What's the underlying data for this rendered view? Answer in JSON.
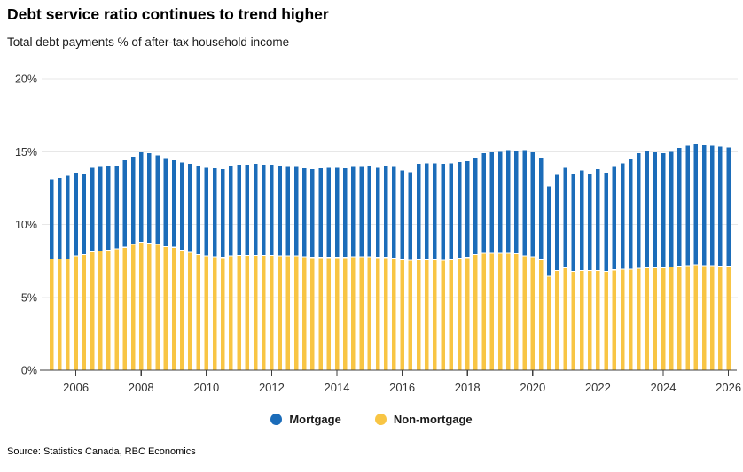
{
  "header": {
    "title": "Debt service ratio continues to trend higher",
    "subtitle": "Total debt payments % of after-tax household income"
  },
  "source": "Source: Statistics Canada, RBC Economics",
  "legend": [
    {
      "label": "Mortgage",
      "color": "#1b6cb9"
    },
    {
      "label": "Non-mortgage",
      "color": "#f8c544"
    }
  ],
  "colors": {
    "mortgage_blue": "#1b6cb9",
    "non_mortgage_yellow": "#f8c544",
    "gridline": "#e7e7e7",
    "axis_line": "#3f3f3f",
    "axis_text": "#333333"
  },
  "chart_data": {
    "type": "bar",
    "stacked": true,
    "title": "Debt service ratio continues to trend higher",
    "subtitle": "Total debt payments % of after-tax household income",
    "xlabel": "",
    "ylabel": "Total debt payments % of after-tax household income",
    "ylim": [
      0,
      20
    ],
    "grid": true,
    "legend_position": "bottom",
    "y_ticks": [
      {
        "label": "0%",
        "value": 0
      },
      {
        "label": "5%",
        "value": 5
      },
      {
        "label": "10%",
        "value": 10
      },
      {
        "label": "15%",
        "value": 15
      },
      {
        "label": "20%",
        "value": 20
      }
    ],
    "x_ticks": [
      {
        "label": "2006",
        "index": 3
      },
      {
        "label": "2008",
        "index": 11
      },
      {
        "label": "2010",
        "index": 19
      },
      {
        "label": "2012",
        "index": 27
      },
      {
        "label": "2014",
        "index": 35
      },
      {
        "label": "2016",
        "index": 43
      },
      {
        "label": "2018",
        "index": 51
      },
      {
        "label": "2020",
        "index": 59
      },
      {
        "label": "2022",
        "index": 67
      },
      {
        "label": "2024",
        "index": 75
      },
      {
        "label": "2026",
        "index": 83
      }
    ],
    "categories": [
      "2005 Q2",
      "2005 Q3",
      "2005 Q4",
      "2006 Q1",
      "2006 Q2",
      "2006 Q3",
      "2006 Q4",
      "2007 Q1",
      "2007 Q2",
      "2007 Q3",
      "2007 Q4",
      "2008 Q1",
      "2008 Q2",
      "2008 Q3",
      "2008 Q4",
      "2009 Q1",
      "2009 Q2",
      "2009 Q3",
      "2009 Q4",
      "2010 Q1",
      "2010 Q2",
      "2010 Q3",
      "2010 Q4",
      "2011 Q1",
      "2011 Q2",
      "2011 Q3",
      "2011 Q4",
      "2012 Q1",
      "2012 Q2",
      "2012 Q3",
      "2012 Q4",
      "2013 Q1",
      "2013 Q2",
      "2013 Q3",
      "2013 Q4",
      "2014 Q1",
      "2014 Q2",
      "2014 Q3",
      "2014 Q4",
      "2015 Q1",
      "2015 Q2",
      "2015 Q3",
      "2015 Q4",
      "2016 Q1",
      "2016 Q2",
      "2016 Q3",
      "2016 Q4",
      "2017 Q1",
      "2017 Q2",
      "2017 Q3",
      "2017 Q4",
      "2018 Q1",
      "2018 Q2",
      "2018 Q3",
      "2018 Q4",
      "2019 Q1",
      "2019 Q2",
      "2019 Q3",
      "2019 Q4",
      "2020 Q1",
      "2020 Q2",
      "2020 Q3",
      "2020 Q4",
      "2021 Q1",
      "2021 Q2",
      "2021 Q3",
      "2021 Q4",
      "2022 Q1",
      "2022 Q2",
      "2022 Q3",
      "2022 Q4",
      "2023 Q1",
      "2023 Q2",
      "2023 Q3",
      "2023 Q4",
      "2024 Q1",
      "2024 Q2",
      "2024 Q3",
      "2024 Q4",
      "2025 Q1",
      "2025 Q2",
      "2025 Q3",
      "2025 Q4",
      "2026 Q1"
    ],
    "series": [
      {
        "name": "Non-mortgage",
        "color": "#f8c544",
        "values": [
          7.6,
          7.6,
          7.6,
          7.8,
          7.9,
          8.1,
          8.15,
          8.2,
          8.3,
          8.4,
          8.6,
          8.75,
          8.7,
          8.6,
          8.45,
          8.4,
          8.2,
          8.05,
          7.9,
          7.8,
          7.75,
          7.7,
          7.8,
          7.85,
          7.85,
          7.85,
          7.85,
          7.85,
          7.8,
          7.8,
          7.8,
          7.75,
          7.7,
          7.7,
          7.7,
          7.7,
          7.7,
          7.75,
          7.75,
          7.75,
          7.7,
          7.7,
          7.65,
          7.55,
          7.5,
          7.55,
          7.55,
          7.55,
          7.5,
          7.55,
          7.65,
          7.7,
          7.9,
          8.0,
          8.0,
          8.0,
          8.0,
          7.95,
          7.8,
          7.75,
          7.55,
          6.4,
          6.8,
          7.0,
          6.75,
          6.8,
          6.8,
          6.8,
          6.75,
          6.85,
          6.9,
          6.9,
          6.95,
          7.0,
          7.0,
          7.0,
          7.05,
          7.1,
          7.15,
          7.2,
          7.15,
          7.15,
          7.1,
          7.1
        ]
      },
      {
        "name": "Mortgage",
        "color": "#1b6cb9",
        "values": [
          5.5,
          5.6,
          5.75,
          5.75,
          5.6,
          5.8,
          5.8,
          5.8,
          5.75,
          6.0,
          6.05,
          6.2,
          6.2,
          6.15,
          6.1,
          6.0,
          6.05,
          6.1,
          6.1,
          6.1,
          6.1,
          6.1,
          6.25,
          6.25,
          6.25,
          6.3,
          6.25,
          6.25,
          6.25,
          6.15,
          6.15,
          6.1,
          6.1,
          6.15,
          6.2,
          6.2,
          6.15,
          6.2,
          6.2,
          6.25,
          6.2,
          6.35,
          6.3,
          6.15,
          6.1,
          6.6,
          6.65,
          6.65,
          6.65,
          6.65,
          6.65,
          6.65,
          6.7,
          6.9,
          6.95,
          7.0,
          7.1,
          7.1,
          7.3,
          7.2,
          7.05,
          6.2,
          6.6,
          6.9,
          6.75,
          6.9,
          6.7,
          7.0,
          6.8,
          7.1,
          7.3,
          7.6,
          7.95,
          8.05,
          7.95,
          7.9,
          7.95,
          8.15,
          8.25,
          8.3,
          8.3,
          8.25,
          8.25,
          8.2
        ]
      }
    ]
  }
}
